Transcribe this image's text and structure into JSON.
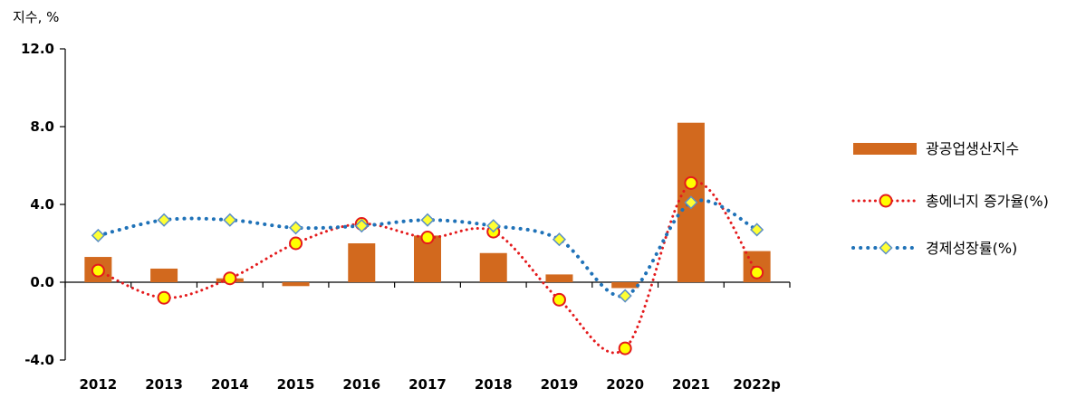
{
  "chart_data": {
    "type": "bar",
    "y_unit_label": "지수, %",
    "categories": [
      "2012",
      "2013",
      "2014",
      "2015",
      "2016",
      "2017",
      "2018",
      "2019",
      "2020",
      "2021",
      "2022p"
    ],
    "ylim": [
      -4.0,
      12.0
    ],
    "yticks": [
      "-4.0",
      "0.0",
      "4.0",
      "8.0",
      "12.0"
    ],
    "ytick_values": [
      -4,
      0,
      4,
      8,
      12
    ],
    "grid": false,
    "legend_position": "right",
    "series": [
      {
        "name": "광공업생산지수",
        "kind": "bar",
        "color": "#d2691e",
        "values": [
          1.3,
          0.7,
          0.2,
          -0.2,
          2.0,
          2.4,
          1.5,
          0.4,
          -0.3,
          8.2,
          1.6
        ]
      },
      {
        "name": "총에너지 증가율(%)",
        "kind": "line",
        "line_style": "dotted",
        "line_color": "#e41a1c",
        "marker": "circle",
        "marker_fill": "#ffff00",
        "values": [
          0.6,
          -0.8,
          0.2,
          2.0,
          3.0,
          2.3,
          2.6,
          -0.9,
          -3.4,
          5.1,
          0.5
        ]
      },
      {
        "name": "경제성장률(%)",
        "kind": "line",
        "line_style": "dotted",
        "line_color": "#1f72b8",
        "marker": "diamond",
        "marker_fill": "#ffff33",
        "values": [
          2.4,
          3.2,
          3.2,
          2.8,
          2.9,
          3.2,
          2.9,
          2.2,
          -0.7,
          4.1,
          2.7
        ]
      }
    ]
  }
}
